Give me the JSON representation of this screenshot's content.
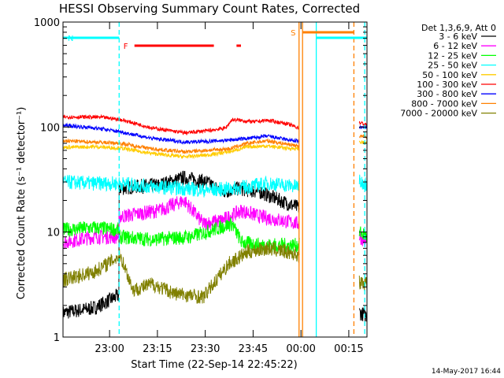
{
  "chart_data": {
    "type": "line",
    "title": "HESSI Observing Summary Count Rates, Corrected",
    "xlabel": "Start Time (22-Sep-14 22:45:22)",
    "ylabel": "Corrected Count Rate (s⁻¹ detector⁻¹)",
    "y_scale": "log",
    "ylim": [
      1,
      1000
    ],
    "xlim_minutes_from_start": [
      0,
      95.3
    ],
    "x_tick_labels": [
      "23:00",
      "23:15",
      "23:30",
      "23:45",
      "00:00",
      "00:15"
    ],
    "x_tick_minutes_from_start": [
      14.6,
      29.6,
      44.6,
      59.6,
      74.6,
      89.6
    ],
    "y_tick_labels": [
      "1",
      "10",
      "100",
      "1000"
    ],
    "legend_header": "Det 1,3,6,9, Att 0",
    "legend_position": "right",
    "stamp": "14-May-2017 16:44",
    "series": [
      {
        "name": "3 - 6 keV",
        "color": "#000000",
        "points": [
          [
            0,
            1.7
          ],
          [
            10,
            1.9
          ],
          [
            17.5,
            2.5
          ],
          [
            17.6,
            26
          ],
          [
            22,
            27
          ],
          [
            30,
            28
          ],
          [
            38,
            33
          ],
          [
            45,
            30
          ],
          [
            50,
            24
          ],
          [
            55,
            26
          ],
          [
            62,
            24
          ],
          [
            68,
            20
          ],
          [
            74,
            17
          ],
          [
            93,
            1.7
          ],
          [
            95.3,
            1.6
          ]
        ]
      },
      {
        "name": "6 - 12 keV",
        "color": "#ff00ff",
        "points": [
          [
            0,
            8
          ],
          [
            10,
            9
          ],
          [
            17.5,
            9
          ],
          [
            17.6,
            14
          ],
          [
            24,
            15
          ],
          [
            30,
            16
          ],
          [
            38,
            20
          ],
          [
            44,
            12
          ],
          [
            50,
            13
          ],
          [
            56,
            16
          ],
          [
            62,
            14
          ],
          [
            68,
            13
          ],
          [
            74,
            12
          ],
          [
            93,
            9
          ],
          [
            95.3,
            8
          ]
        ]
      },
      {
        "name": "12 - 25 keV",
        "color": "#00ff00",
        "points": [
          [
            0,
            10.5
          ],
          [
            10,
            11
          ],
          [
            17.5,
            10.5
          ],
          [
            17.6,
            9
          ],
          [
            28,
            8.5
          ],
          [
            40,
            9
          ],
          [
            53,
            12
          ],
          [
            56,
            8
          ],
          [
            62,
            7.5
          ],
          [
            68,
            7.5
          ],
          [
            74,
            7.5
          ],
          [
            93,
            10
          ],
          [
            95.3,
            9
          ]
        ]
      },
      {
        "name": "25 - 50 keV",
        "color": "#00ffff",
        "points": [
          [
            0,
            30
          ],
          [
            10,
            29
          ],
          [
            18,
            29
          ],
          [
            28,
            27
          ],
          [
            38,
            26
          ],
          [
            45,
            25
          ],
          [
            53,
            26
          ],
          [
            58,
            27
          ],
          [
            64,
            29
          ],
          [
            70,
            28
          ],
          [
            74,
            27
          ],
          [
            93,
            30
          ],
          [
            95.3,
            29
          ]
        ]
      },
      {
        "name": "50 - 100 keV",
        "color": "#ffcc00",
        "points": [
          [
            0,
            64
          ],
          [
            10,
            65
          ],
          [
            18,
            63
          ],
          [
            28,
            56
          ],
          [
            38,
            52
          ],
          [
            45,
            54
          ],
          [
            52,
            58
          ],
          [
            58,
            65
          ],
          [
            64,
            66
          ],
          [
            70,
            63
          ],
          [
            74,
            62
          ],
          [
            93,
            72
          ],
          [
            95.3,
            70
          ]
        ]
      },
      {
        "name": "100 - 300 keV",
        "color": "#ff0000",
        "points": [
          [
            0,
            125
          ],
          [
            12,
            124
          ],
          [
            18,
            118
          ],
          [
            28,
            98
          ],
          [
            38,
            88
          ],
          [
            45,
            92
          ],
          [
            51,
            98
          ],
          [
            53,
            118
          ],
          [
            60,
            112
          ],
          [
            64,
            116
          ],
          [
            70,
            108
          ],
          [
            74,
            98
          ],
          [
            93,
            110
          ],
          [
            95.3,
            105
          ]
        ]
      },
      {
        "name": "300 - 800 keV",
        "color": "#0000ff",
        "points": [
          [
            0,
            104
          ],
          [
            10,
            98
          ],
          [
            18,
            90
          ],
          [
            28,
            78
          ],
          [
            38,
            72
          ],
          [
            45,
            73
          ],
          [
            52,
            75
          ],
          [
            58,
            78
          ],
          [
            64,
            82
          ],
          [
            70,
            76
          ],
          [
            74,
            73
          ],
          [
            93,
            100
          ],
          [
            95.3,
            98
          ]
        ]
      },
      {
        "name": "800 - 7000 keV",
        "color": "#ff8000",
        "points": [
          [
            0,
            74
          ],
          [
            10,
            72
          ],
          [
            18,
            70
          ],
          [
            28,
            62
          ],
          [
            38,
            58
          ],
          [
            45,
            60
          ],
          [
            52,
            62
          ],
          [
            58,
            70
          ],
          [
            64,
            74
          ],
          [
            70,
            69
          ],
          [
            74,
            66
          ],
          [
            93,
            82
          ],
          [
            95.3,
            80
          ]
        ]
      },
      {
        "name": "7000 - 20000 keV",
        "color": "#808000",
        "points": [
          [
            0,
            3.5
          ],
          [
            10,
            4.2
          ],
          [
            18,
            6
          ],
          [
            22,
            2.8
          ],
          [
            28,
            3.2
          ],
          [
            35,
            2.6
          ],
          [
            44,
            2.4
          ],
          [
            52,
            5
          ],
          [
            58,
            6.5
          ],
          [
            64,
            7
          ],
          [
            70,
            6.5
          ],
          [
            74,
            6
          ],
          [
            93,
            3.3
          ],
          [
            95.3,
            3.2
          ]
        ]
      }
    ],
    "flags": [
      {
        "label": "N",
        "color": "#00ffff",
        "label_color": "#00ffff",
        "segments": [
          [
            0,
            17.6
          ],
          [
            79.4,
            95.3
          ]
        ]
      },
      {
        "label": "F",
        "color": "#ff0000",
        "label_color": "#ff0000",
        "segments": [
          [
            22.4,
            47.3
          ],
          [
            54.4,
            55.8
          ]
        ]
      },
      {
        "label": "S",
        "color": "#ff8000",
        "label_color": "#ff8000",
        "segments": [
          [
            75.1,
            91.2
          ]
        ]
      }
    ],
    "vertical_markers": [
      {
        "minute": 17.6,
        "color": "#00ffff",
        "style": "dashed"
      },
      {
        "minute": 74.0,
        "color": "#ff8000",
        "style": "solid"
      },
      {
        "minute": 75.1,
        "color": "#ff8000",
        "style": "solid"
      },
      {
        "minute": 79.4,
        "color": "#00ffff",
        "style": "solid"
      },
      {
        "minute": 91.2,
        "color": "#ff8000",
        "style": "dashed"
      },
      {
        "minute": 94.6,
        "color": "#00ffff",
        "style": "dashed"
      }
    ],
    "gaps_minutes": [
      [
        74.2,
        92.8
      ]
    ]
  }
}
